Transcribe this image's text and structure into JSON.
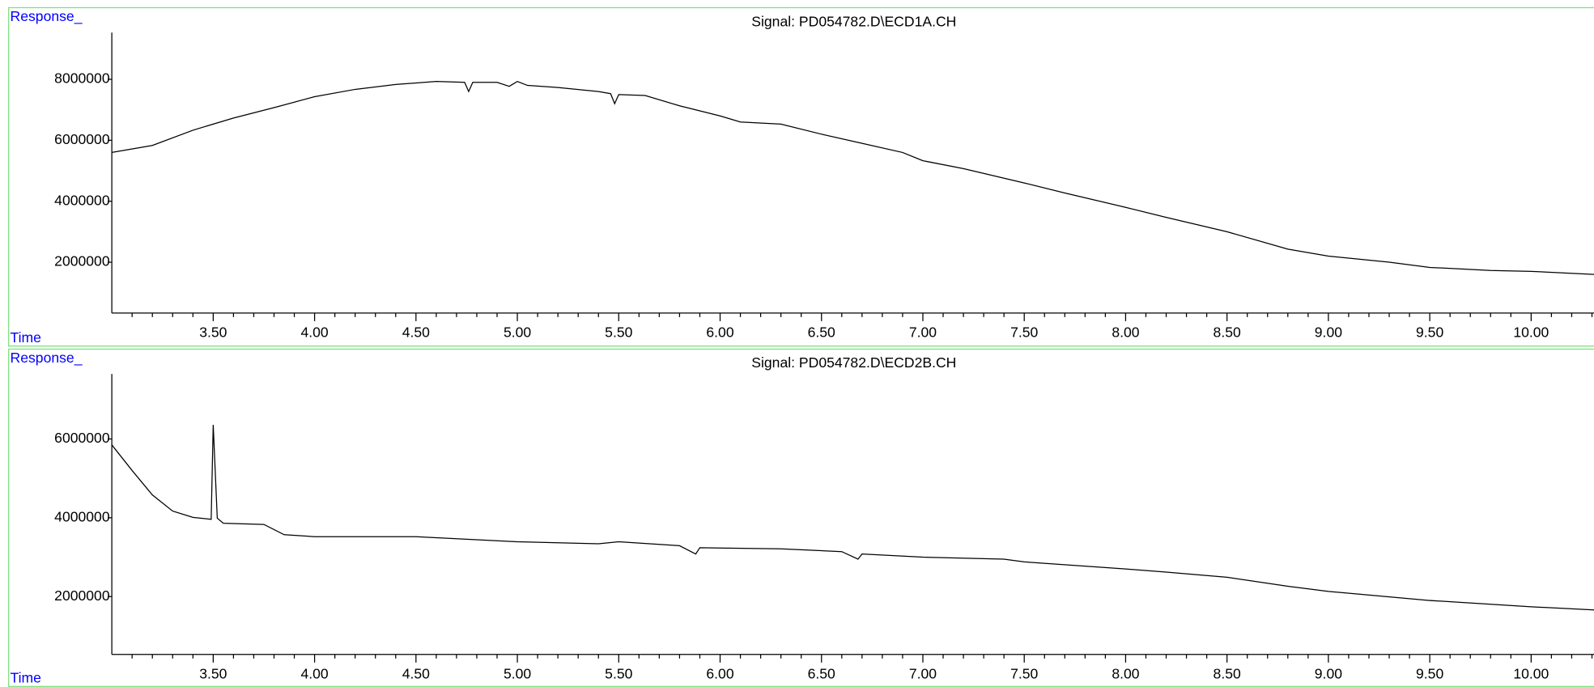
{
  "chart_data": [
    {
      "type": "line",
      "title": "Signal: PD054782.D\\ECD1A.CH",
      "ylabel": "Response_",
      "xlabel": "Time",
      "xlim": [
        3.0,
        10.31
      ],
      "ylim": [
        333333,
        9533333
      ],
      "xticks": [
        {
          "value": 3.5,
          "label": "3.50"
        },
        {
          "value": 4.0,
          "label": "4.00"
        },
        {
          "value": 4.5,
          "label": "4.50"
        },
        {
          "value": 5.0,
          "label": "5.00"
        },
        {
          "value": 5.5,
          "label": "5.50"
        },
        {
          "value": 6.0,
          "label": "6.00"
        },
        {
          "value": 6.5,
          "label": "6.50"
        },
        {
          "value": 7.0,
          "label": "7.00"
        },
        {
          "value": 7.5,
          "label": "7.50"
        },
        {
          "value": 8.0,
          "label": "8.00"
        },
        {
          "value": 8.5,
          "label": "8.50"
        },
        {
          "value": 9.0,
          "label": "9.00"
        },
        {
          "value": 9.5,
          "label": "9.50"
        },
        {
          "value": 10.0,
          "label": "10.00"
        }
      ],
      "xminorticks": [
        3.1,
        3.2,
        3.3,
        3.4,
        3.6,
        3.7,
        3.8,
        3.9,
        4.1,
        4.2,
        4.3,
        4.4,
        4.6,
        4.7,
        4.8,
        4.9,
        5.1,
        5.2,
        5.3,
        5.4,
        5.6,
        5.7,
        5.8,
        5.9,
        6.1,
        6.2,
        6.3,
        6.4,
        6.6,
        6.7,
        6.8,
        6.9,
        7.1,
        7.2,
        7.3,
        7.4,
        7.6,
        7.7,
        7.8,
        7.9,
        8.1,
        8.2,
        8.3,
        8.4,
        8.6,
        8.7,
        8.8,
        8.9,
        9.1,
        9.2,
        9.3,
        9.4,
        9.6,
        9.7,
        9.8,
        9.9,
        10.1,
        10.2,
        10.3
      ],
      "yticks": [
        2000000,
        4000000,
        6000000,
        8000000
      ],
      "color": "#000000",
      "x": [
        3.0,
        3.2,
        3.4,
        3.6,
        3.8,
        4.0,
        4.2,
        4.4,
        4.6,
        4.74,
        4.76,
        4.78,
        4.9,
        4.96,
        5.0,
        5.05,
        5.2,
        5.4,
        5.46,
        5.48,
        5.5,
        5.63,
        5.8,
        6.0,
        6.1,
        6.3,
        6.5,
        6.7,
        6.9,
        7.0,
        7.2,
        7.5,
        7.7,
        8.0,
        8.2,
        8.5,
        8.8,
        9.0,
        9.3,
        9.5,
        9.8,
        10.0,
        10.31
      ],
      "values": [
        5600000,
        5830000,
        6330000,
        6730000,
        7070000,
        7430000,
        7670000,
        7830000,
        7930000,
        7900000,
        7600000,
        7900000,
        7900000,
        7770000,
        7930000,
        7800000,
        7730000,
        7600000,
        7530000,
        7200000,
        7500000,
        7470000,
        7130000,
        6800000,
        6600000,
        6530000,
        6200000,
        5900000,
        5600000,
        5330000,
        5070000,
        4600000,
        4270000,
        3800000,
        3470000,
        3000000,
        2430000,
        2200000,
        2000000,
        1830000,
        1730000,
        1700000,
        1600000
      ]
    },
    {
      "type": "line",
      "title": "Signal: PD054782.D\\ECD2B.CH",
      "ylabel": "Response_",
      "xlabel": "Time",
      "xlim": [
        3.0,
        10.31
      ],
      "ylim": [
        530000,
        7650000
      ],
      "xticks": [
        {
          "value": 3.5,
          "label": "3.50"
        },
        {
          "value": 4.0,
          "label": "4.00"
        },
        {
          "value": 4.5,
          "label": "4.50"
        },
        {
          "value": 5.0,
          "label": "5.00"
        },
        {
          "value": 5.5,
          "label": "5.50"
        },
        {
          "value": 6.0,
          "label": "6.00"
        },
        {
          "value": 6.5,
          "label": "6.50"
        },
        {
          "value": 7.0,
          "label": "7.00"
        },
        {
          "value": 7.5,
          "label": "7.50"
        },
        {
          "value": 8.0,
          "label": "8.00"
        },
        {
          "value": 8.5,
          "label": "8.50"
        },
        {
          "value": 9.0,
          "label": "9.00"
        },
        {
          "value": 9.5,
          "label": "9.50"
        },
        {
          "value": 10.0,
          "label": "10.00"
        }
      ],
      "xminorticks": [
        3.1,
        3.2,
        3.3,
        3.4,
        3.6,
        3.7,
        3.8,
        3.9,
        4.1,
        4.2,
        4.3,
        4.4,
        4.6,
        4.7,
        4.8,
        4.9,
        5.1,
        5.2,
        5.3,
        5.4,
        5.6,
        5.7,
        5.8,
        5.9,
        6.1,
        6.2,
        6.3,
        6.4,
        6.6,
        6.7,
        6.8,
        6.9,
        7.1,
        7.2,
        7.3,
        7.4,
        7.6,
        7.7,
        7.8,
        7.9,
        8.1,
        8.2,
        8.3,
        8.4,
        8.6,
        8.7,
        8.8,
        8.9,
        9.1,
        9.2,
        9.3,
        9.4,
        9.6,
        9.7,
        9.8,
        9.9,
        10.1,
        10.2,
        10.3
      ],
      "yticks": [
        2000000,
        4000000,
        6000000
      ],
      "color": "#000000",
      "x": [
        3.0,
        3.1,
        3.2,
        3.3,
        3.4,
        3.49,
        3.5,
        3.52,
        3.55,
        3.75,
        3.85,
        4.0,
        4.5,
        5.0,
        5.4,
        5.5,
        5.8,
        5.88,
        5.9,
        6.3,
        6.6,
        6.68,
        6.7,
        7.0,
        7.4,
        7.5,
        8.0,
        8.2,
        8.5,
        8.8,
        9.0,
        9.5,
        10.0,
        10.31
      ],
      "values": [
        5850000,
        5200000,
        4580000,
        4170000,
        4010000,
        3960000,
        6360000,
        3990000,
        3860000,
        3830000,
        3570000,
        3520000,
        3520000,
        3390000,
        3340000,
        3390000,
        3290000,
        3080000,
        3240000,
        3210000,
        3140000,
        2950000,
        3080000,
        3000000,
        2950000,
        2880000,
        2700000,
        2620000,
        2490000,
        2260000,
        2130000,
        1900000,
        1740000,
        1660000
      ]
    }
  ]
}
